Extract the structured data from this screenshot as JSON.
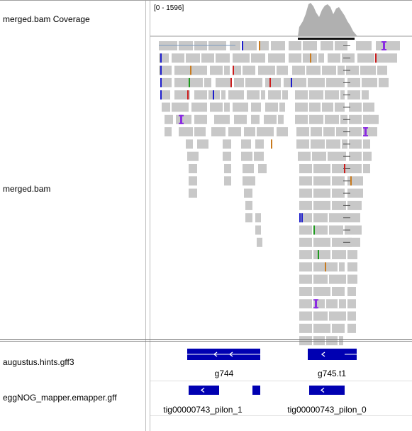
{
  "tracks": {
    "coverage_name": "merged.bam Coverage",
    "alignment_name": "merged.bam",
    "hints_name": "augustus.hints.gff3",
    "emapper_name": "eggNOG_mapper.emapper.gff"
  },
  "coverage": {
    "range_label": "[0 - 1596]"
  },
  "features": {
    "hints": [
      {
        "label": "g744"
      },
      {
        "label": "g745.t1"
      }
    ],
    "emapper": [
      {
        "label": "tig00000743_pilon_1"
      },
      {
        "label": "tig00000743_pilon_0"
      }
    ]
  },
  "colors": {
    "read": "#c8c8c8",
    "coverage": "#b0b0b0",
    "feature": "#0000b2",
    "insertion": "#8a2be2",
    "mismatch_a": "#1e9a1e",
    "mismatch_c": "#1c1ccc",
    "mismatch_g": "#c87a1e",
    "mismatch_t": "#cc1c1c"
  }
}
